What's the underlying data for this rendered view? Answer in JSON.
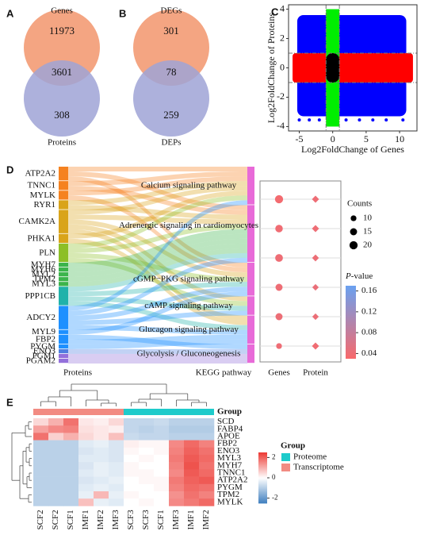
{
  "panel_labels": [
    "A",
    "B",
    "C",
    "D",
    "E"
  ],
  "venn_a": {
    "type": "venn",
    "sets": [
      "Genes",
      "Proteins"
    ],
    "only": [
      11973,
      308
    ],
    "both": 3601,
    "colors": [
      "#f4a582",
      "#9fa3d6"
    ]
  },
  "venn_b": {
    "type": "venn",
    "sets": [
      "DEGs",
      "DEPs"
    ],
    "only": [
      301,
      259
    ],
    "both": 78,
    "colors": [
      "#f4a582",
      "#9fa3d6"
    ]
  },
  "scatter": {
    "type": "scatter",
    "xlabel": "Log2FoldChange of Genes",
    "ylabel": "Log2FoldChange of Proteins",
    "xlim": [
      -6.6,
      12.6
    ],
    "ylim": [
      -4.3,
      4.3
    ],
    "xticks": [
      -5,
      0,
      5,
      10
    ],
    "yticks": [
      -4,
      -2,
      0,
      2,
      4
    ],
    "thresholds": [
      -1,
      1
    ],
    "colors": {
      "both": "#0000ff",
      "genes": "#ff0000",
      "proteins": "#00ee00",
      "none": "#000000"
    }
  },
  "sankey": {
    "type": "sankey",
    "source_label": "Proteins",
    "target_label": "KEGG pathway",
    "proteins": [
      "ATP2A2",
      "TNNC1",
      "MYLK",
      "RYR1",
      "CAMK2A",
      "PHKA1",
      "PLN",
      "MYH7",
      "MYH6",
      "MYL2",
      "TPM2",
      "MYL3",
      "PPP1CB",
      "ADCY2",
      "MYL9",
      "FBP2",
      "PYGM",
      "ENO3",
      "PGM1",
      "PGAM2"
    ],
    "protein_colors": [
      "#f58220",
      "#f58220",
      "#f58220",
      "#d9a41a",
      "#d9a41a",
      "#d9a41a",
      "#8cbf26",
      "#3cb44b",
      "#3cb44b",
      "#3cb44b",
      "#3cb44b",
      "#3cb44b",
      "#20b2aa",
      "#1e90ff",
      "#1e90ff",
      "#1e90ff",
      "#1e90ff",
      "#4f7fe0",
      "#9370db",
      "#9370db"
    ],
    "pathways": [
      "Calcium signaling pathway",
      "Adrenergic signaling in cardiomyocytes",
      "cGMP−PKG signaling pathway",
      "cAMP signaling pathway",
      "Glucagon signaling pathway",
      "Glycolysis / Gluconeogenesis"
    ],
    "pathway_color": "#e86ad8",
    "links": [
      [
        0,
        0
      ],
      [
        0,
        1
      ],
      [
        0,
        2
      ],
      [
        1,
        0
      ],
      [
        1,
        1
      ],
      [
        2,
        0
      ],
      [
        2,
        2
      ],
      [
        3,
        0
      ],
      [
        3,
        1
      ],
      [
        4,
        0
      ],
      [
        4,
        1
      ],
      [
        4,
        2
      ],
      [
        4,
        3
      ],
      [
        4,
        4
      ],
      [
        5,
        0
      ],
      [
        5,
        4
      ],
      [
        6,
        0
      ],
      [
        6,
        1
      ],
      [
        6,
        2
      ],
      [
        6,
        3
      ],
      [
        7,
        1
      ],
      [
        8,
        1
      ],
      [
        9,
        1
      ],
      [
        10,
        1
      ],
      [
        11,
        1
      ],
      [
        12,
        1
      ],
      [
        12,
        2
      ],
      [
        12,
        3
      ],
      [
        12,
        4
      ],
      [
        13,
        0
      ],
      [
        13,
        1
      ],
      [
        13,
        2
      ],
      [
        13,
        3
      ],
      [
        13,
        4
      ],
      [
        14,
        2
      ],
      [
        15,
        5
      ],
      [
        15,
        4
      ],
      [
        16,
        4
      ],
      [
        17,
        5
      ],
      [
        18,
        5
      ],
      [
        19,
        5
      ]
    ]
  },
  "dotplot": {
    "type": "dot",
    "columns": [
      "Genes",
      "Protein"
    ],
    "counts": [
      [
        20,
        12
      ],
      [
        17,
        12
      ],
      [
        18,
        11
      ],
      [
        15,
        10
      ],
      [
        15,
        10
      ],
      [
        10,
        12
      ]
    ],
    "pvalues": [
      [
        0.035,
        0.04
      ],
      [
        0.038,
        0.04
      ],
      [
        0.04,
        0.042
      ],
      [
        0.04,
        0.045
      ],
      [
        0.042,
        0.043
      ],
      [
        0.04,
        0.038
      ]
    ],
    "size_title": "Counts",
    "size_ticks": [
      10,
      15,
      20
    ],
    "color_title_italic": "P",
    "color_title_rest": "-value",
    "clim": [
      0.03,
      0.17
    ],
    "cticks": [
      0.04,
      0.08,
      0.12,
      0.16
    ],
    "color_low": "#f8696b",
    "color_high": "#6aa1f0"
  },
  "heatmap": {
    "type": "heatmap",
    "columns": [
      "SCF2",
      "SCF2",
      "SCF1",
      "IMF1",
      "IMF2",
      "IMF3",
      "SCF3",
      "SCF3",
      "SCF1",
      "IMF3",
      "IMF1",
      "IMF2"
    ],
    "column_groups": [
      1,
      1,
      1,
      1,
      1,
      1,
      0,
      0,
      0,
      0,
      0,
      0
    ],
    "rows": [
      "SCD",
      "FABP4",
      "APOE",
      "FBP2",
      "ENO3",
      "MYL3",
      "MYH7",
      "TNNC1",
      "ATP2A2",
      "PYGM",
      "TPM2",
      "MYLK"
    ],
    "values": [
      [
        0.5,
        1.0,
        1.8,
        0.3,
        0.2,
        0.5,
        -0.8,
        -0.8,
        -0.7,
        -0.9,
        -0.9,
        -0.9
      ],
      [
        1.2,
        1.5,
        1.6,
        0.4,
        0.3,
        0.2,
        -0.8,
        -0.9,
        -0.8,
        -1.0,
        -1.0,
        -1.0
      ],
      [
        1.8,
        0.6,
        1.0,
        0.5,
        0.3,
        0.8,
        -0.7,
        -0.8,
        -0.8,
        -0.9,
        -0.9,
        -0.9
      ],
      [
        -0.9,
        -0.9,
        -0.9,
        -0.4,
        -0.3,
        -0.5,
        0.2,
        0.1,
        0.1,
        1.5,
        1.9,
        1.6
      ],
      [
        -0.9,
        -0.9,
        -0.9,
        -0.5,
        -0.4,
        -0.5,
        0.1,
        0.0,
        0.1,
        1.6,
        2.0,
        1.8
      ],
      [
        -0.9,
        -0.9,
        -0.9,
        -0.4,
        -0.4,
        -0.5,
        0.0,
        0.1,
        0.0,
        1.7,
        2.1,
        1.9
      ],
      [
        -0.9,
        -0.9,
        -0.9,
        -0.5,
        -0.3,
        -0.4,
        0.1,
        0.0,
        0.0,
        1.6,
        2.2,
        1.8
      ],
      [
        -0.9,
        -0.9,
        -0.9,
        -0.4,
        -0.3,
        -0.4,
        0.1,
        0.1,
        0.0,
        1.5,
        2.1,
        1.9
      ],
      [
        -0.9,
        -0.9,
        -0.9,
        -0.5,
        -0.4,
        -0.3,
        0.0,
        0.1,
        0.1,
        1.7,
        2.0,
        2.1
      ],
      [
        -0.9,
        -0.9,
        -0.9,
        -0.4,
        -0.3,
        -0.4,
        0.0,
        0.0,
        0.1,
        1.6,
        1.9,
        1.8
      ],
      [
        -0.9,
        -0.9,
        -0.9,
        -0.3,
        0.9,
        -0.3,
        0.1,
        0.0,
        0.0,
        1.4,
        1.8,
        1.6
      ],
      [
        -0.9,
        -0.9,
        -0.9,
        0.8,
        -0.3,
        -0.4,
        0.0,
        0.1,
        0.0,
        1.5,
        1.7,
        1.9
      ]
    ],
    "clim": [
      -2.5,
      2.5
    ],
    "cticks": [
      2,
      0,
      -2
    ],
    "color_low": "#3f7fbf",
    "color_mid": "#ffffff",
    "color_high": "#ec3b35",
    "group_title": "Group",
    "groups": [
      "Proteome",
      "Transcriptome"
    ],
    "group_colors": [
      "#1ecbcb",
      "#f28b82"
    ]
  }
}
